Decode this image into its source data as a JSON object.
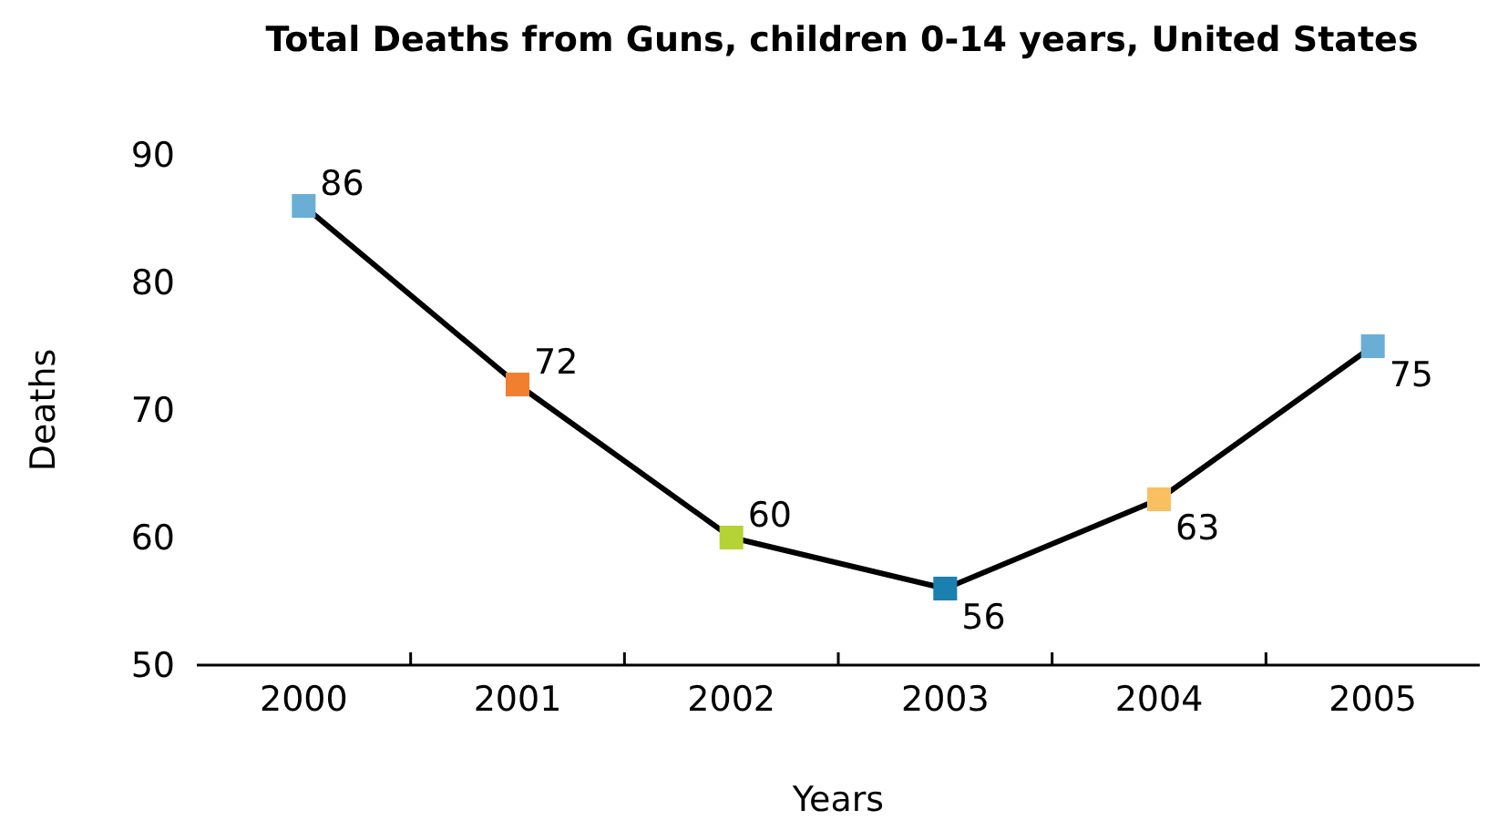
{
  "chart_data": {
    "type": "line",
    "title": "Total Deaths from Guns, children 0-14 years, United States",
    "xlabel": "Years",
    "ylabel": "Deaths",
    "categories": [
      "2000",
      "2001",
      "2002",
      "2003",
      "2004",
      "2005"
    ],
    "series": [
      {
        "color": "#000000",
        "colors": [
          "#6aaed6",
          "#f08030",
          "#b5d334",
          "#1a80b0",
          "#f8c060",
          "#6aaed6"
        ],
        "values": [
          86,
          72,
          60,
          56,
          63,
          75
        ]
      }
    ],
    "ylim": [
      50,
      90
    ],
    "yticks": [
      50,
      60,
      70,
      80,
      90
    ],
    "marker": "square",
    "line_style": "solid",
    "data_labels": true,
    "grid": false
  }
}
